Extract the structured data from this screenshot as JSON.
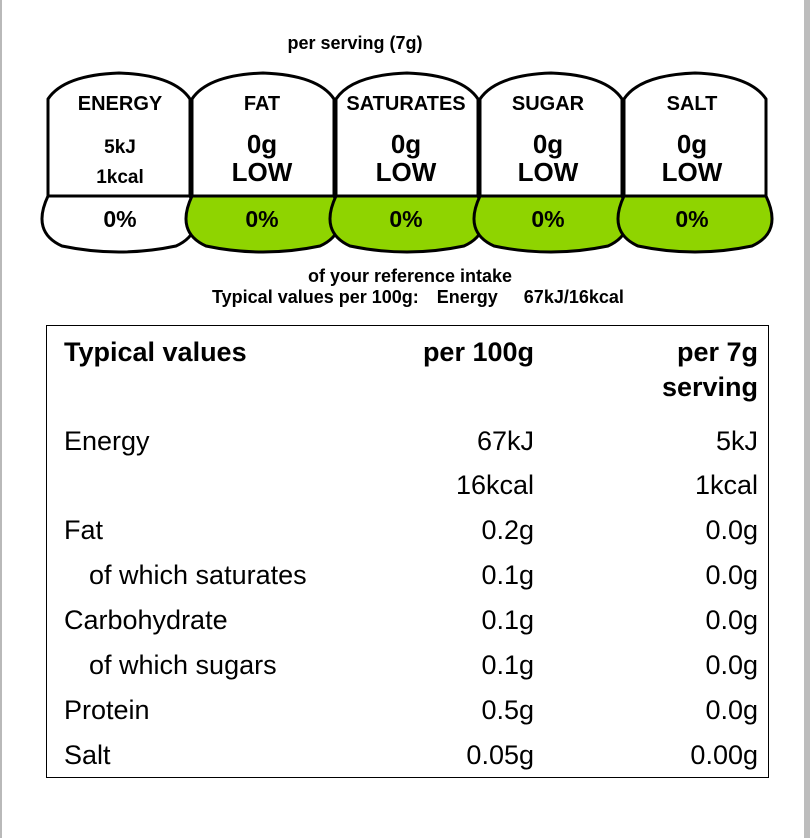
{
  "per_serving_label": "per serving (7g)",
  "traffic_lights": [
    {
      "label": "ENERGY",
      "line1": "5kJ",
      "line2": "1kcal",
      "percent": "0%",
      "color": "#ffffff"
    },
    {
      "label": "FAT",
      "line1": "0g",
      "line2": "LOW",
      "percent": "0%",
      "color": "#8fd400"
    },
    {
      "label": "SATURATES",
      "line1": "0g",
      "line2": "LOW",
      "percent": "0%",
      "color": "#8fd400"
    },
    {
      "label": "SUGAR",
      "line1": "0g",
      "line2": "LOW",
      "percent": "0%",
      "color": "#8fd400"
    },
    {
      "label": "SALT",
      "line1": "0g",
      "line2": "LOW",
      "percent": "0%",
      "color": "#8fd400"
    }
  ],
  "reference_intake_text": "of your reference intake",
  "typical_per_100g": {
    "label": "Typical values per 100g:",
    "nutrient": "Energy",
    "value": "67kJ/16kcal"
  },
  "table": {
    "headers": {
      "col1": "Typical values",
      "col2": "per 100g",
      "col3_line1": "per 7g",
      "col3_line2": "serving"
    },
    "rows": [
      {
        "name": "Energy",
        "per100": "67kJ",
        "perServing": "5kJ",
        "indent": false
      },
      {
        "name": "",
        "per100": "16kcal",
        "perServing": "1kcal",
        "indent": false
      },
      {
        "name": "Fat",
        "per100": "0.2g",
        "perServing": "0.0g",
        "indent": false
      },
      {
        "name": "of which saturates",
        "per100": "0.1g",
        "perServing": "0.0g",
        "indent": true
      },
      {
        "name": "Carbohydrate",
        "per100": "0.1g",
        "perServing": "0.0g",
        "indent": false
      },
      {
        "name": "of which sugars",
        "per100": "0.1g",
        "perServing": "0.0g",
        "indent": true
      },
      {
        "name": "Protein",
        "per100": "0.5g",
        "perServing": "0.0g",
        "indent": false
      },
      {
        "name": "Salt",
        "per100": "0.05g",
        "perServing": "0.00g",
        "indent": false
      }
    ]
  }
}
